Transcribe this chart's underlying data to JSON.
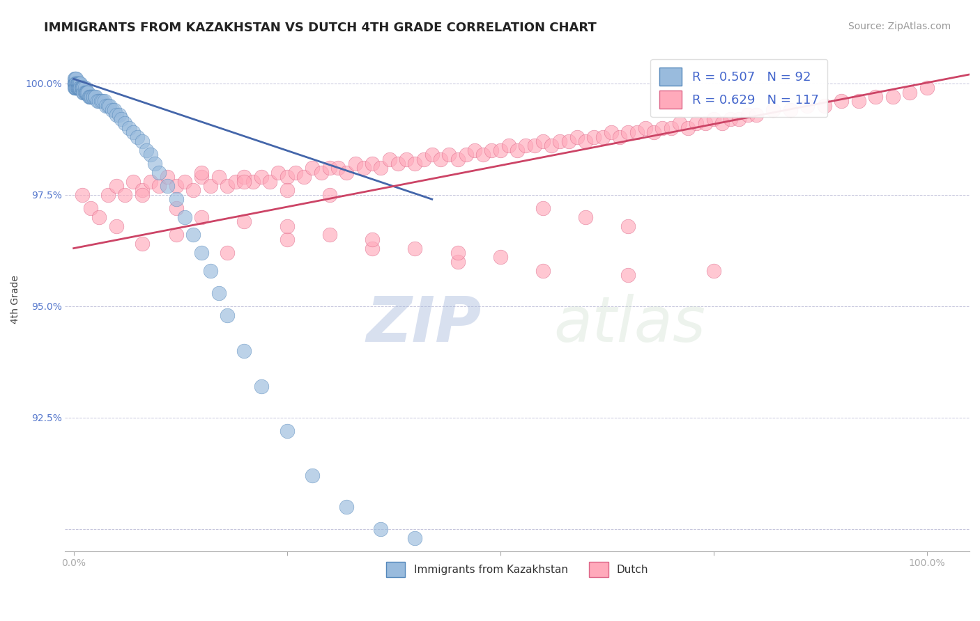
{
  "title": "IMMIGRANTS FROM KAZAKHSTAN VS DUTCH 4TH GRADE CORRELATION CHART",
  "source_text": "Source: ZipAtlas.com",
  "ylabel": "4th Grade",
  "xlim": [
    -0.01,
    1.05
  ],
  "ylim": [
    0.895,
    1.008
  ],
  "blue_color": "#99BBDD",
  "pink_color": "#FFAABB",
  "blue_edge": "#5588BB",
  "pink_edge": "#DD6688",
  "blue_line_color": "#4466AA",
  "pink_line_color": "#CC4466",
  "legend_R_blue": "R = 0.507",
  "legend_N_blue": "N = 92",
  "legend_R_pink": "R = 0.629",
  "legend_N_pink": "N = 117",
  "watermark_zip": "ZIP",
  "watermark_atlas": "atlas",
  "title_fontsize": 13,
  "axis_label_fontsize": 10,
  "tick_fontsize": 10,
  "legend_fontsize": 13,
  "source_fontsize": 10,
  "blue_scatter_x": [
    0.001,
    0.001,
    0.001,
    0.001,
    0.001,
    0.002,
    0.002,
    0.002,
    0.002,
    0.002,
    0.003,
    0.003,
    0.003,
    0.003,
    0.003,
    0.004,
    0.004,
    0.004,
    0.004,
    0.005,
    0.005,
    0.005,
    0.005,
    0.006,
    0.006,
    0.006,
    0.007,
    0.007,
    0.007,
    0.008,
    0.008,
    0.008,
    0.009,
    0.009,
    0.01,
    0.01,
    0.011,
    0.011,
    0.012,
    0.012,
    0.013,
    0.013,
    0.014,
    0.015,
    0.015,
    0.016,
    0.017,
    0.018,
    0.019,
    0.02,
    0.021,
    0.022,
    0.023,
    0.025,
    0.026,
    0.028,
    0.03,
    0.032,
    0.034,
    0.036,
    0.038,
    0.04,
    0.042,
    0.045,
    0.048,
    0.05,
    0.053,
    0.056,
    0.06,
    0.065,
    0.07,
    0.075,
    0.08,
    0.085,
    0.09,
    0.095,
    0.1,
    0.11,
    0.12,
    0.13,
    0.14,
    0.15,
    0.16,
    0.17,
    0.18,
    0.2,
    0.22,
    0.25,
    0.28,
    0.32,
    0.36,
    0.4
  ],
  "blue_scatter_y": [
    1.001,
    1.0,
    1.0,
    1.0,
    0.999,
    1.001,
    1.0,
    1.0,
    0.999,
    0.999,
    1.001,
    1.0,
    1.0,
    0.999,
    0.999,
    1.0,
    1.0,
    0.999,
    0.999,
    1.0,
    1.0,
    0.999,
    0.999,
    1.0,
    0.999,
    0.999,
    1.0,
    0.999,
    0.999,
    1.0,
    0.999,
    0.999,
    0.999,
    0.999,
    0.999,
    0.999,
    0.999,
    0.998,
    0.999,
    0.998,
    0.999,
    0.998,
    0.998,
    0.998,
    0.998,
    0.998,
    0.998,
    0.997,
    0.997,
    0.997,
    0.997,
    0.997,
    0.997,
    0.997,
    0.997,
    0.996,
    0.996,
    0.996,
    0.996,
    0.996,
    0.995,
    0.995,
    0.995,
    0.994,
    0.994,
    0.993,
    0.993,
    0.992,
    0.991,
    0.99,
    0.989,
    0.988,
    0.987,
    0.985,
    0.984,
    0.982,
    0.98,
    0.977,
    0.974,
    0.97,
    0.966,
    0.962,
    0.958,
    0.953,
    0.948,
    0.94,
    0.932,
    0.922,
    0.912,
    0.905,
    0.9,
    0.898
  ],
  "pink_scatter_x": [
    0.01,
    0.02,
    0.03,
    0.04,
    0.05,
    0.06,
    0.07,
    0.08,
    0.09,
    0.1,
    0.11,
    0.12,
    0.13,
    0.14,
    0.15,
    0.16,
    0.17,
    0.18,
    0.19,
    0.2,
    0.21,
    0.22,
    0.23,
    0.24,
    0.25,
    0.26,
    0.27,
    0.28,
    0.29,
    0.3,
    0.31,
    0.32,
    0.33,
    0.34,
    0.35,
    0.36,
    0.37,
    0.38,
    0.39,
    0.4,
    0.41,
    0.42,
    0.43,
    0.44,
    0.45,
    0.46,
    0.47,
    0.48,
    0.49,
    0.5,
    0.51,
    0.52,
    0.53,
    0.54,
    0.55,
    0.56,
    0.57,
    0.58,
    0.59,
    0.6,
    0.61,
    0.62,
    0.63,
    0.64,
    0.65,
    0.66,
    0.67,
    0.68,
    0.69,
    0.7,
    0.71,
    0.72,
    0.73,
    0.74,
    0.75,
    0.76,
    0.77,
    0.78,
    0.79,
    0.8,
    0.82,
    0.84,
    0.86,
    0.88,
    0.9,
    0.92,
    0.94,
    0.96,
    0.98,
    1.0,
    0.05,
    0.08,
    0.12,
    0.18,
    0.25,
    0.35,
    0.45,
    0.55,
    0.65,
    0.75,
    0.08,
    0.12,
    0.15,
    0.2,
    0.25,
    0.3,
    0.35,
    0.4,
    0.45,
    0.5,
    0.15,
    0.2,
    0.25,
    0.3,
    0.55,
    0.6,
    0.65
  ],
  "pink_scatter_y": [
    0.975,
    0.972,
    0.97,
    0.975,
    0.977,
    0.975,
    0.978,
    0.976,
    0.978,
    0.977,
    0.979,
    0.977,
    0.978,
    0.976,
    0.979,
    0.977,
    0.979,
    0.977,
    0.978,
    0.979,
    0.978,
    0.979,
    0.978,
    0.98,
    0.979,
    0.98,
    0.979,
    0.981,
    0.98,
    0.981,
    0.981,
    0.98,
    0.982,
    0.981,
    0.982,
    0.981,
    0.983,
    0.982,
    0.983,
    0.982,
    0.983,
    0.984,
    0.983,
    0.984,
    0.983,
    0.984,
    0.985,
    0.984,
    0.985,
    0.985,
    0.986,
    0.985,
    0.986,
    0.986,
    0.987,
    0.986,
    0.987,
    0.987,
    0.988,
    0.987,
    0.988,
    0.988,
    0.989,
    0.988,
    0.989,
    0.989,
    0.99,
    0.989,
    0.99,
    0.99,
    0.991,
    0.99,
    0.991,
    0.991,
    0.992,
    0.991,
    0.992,
    0.992,
    0.993,
    0.993,
    0.994,
    0.994,
    0.995,
    0.995,
    0.996,
    0.996,
    0.997,
    0.997,
    0.998,
    0.999,
    0.968,
    0.964,
    0.966,
    0.962,
    0.965,
    0.963,
    0.96,
    0.958,
    0.957,
    0.958,
    0.975,
    0.972,
    0.97,
    0.969,
    0.968,
    0.966,
    0.965,
    0.963,
    0.962,
    0.961,
    0.98,
    0.978,
    0.976,
    0.975,
    0.972,
    0.97,
    0.968
  ],
  "blue_line_x": [
    0.0,
    0.42
  ],
  "blue_line_y": [
    1.001,
    0.974
  ],
  "pink_line_x": [
    0.0,
    1.05
  ],
  "pink_line_y": [
    0.963,
    1.002
  ]
}
